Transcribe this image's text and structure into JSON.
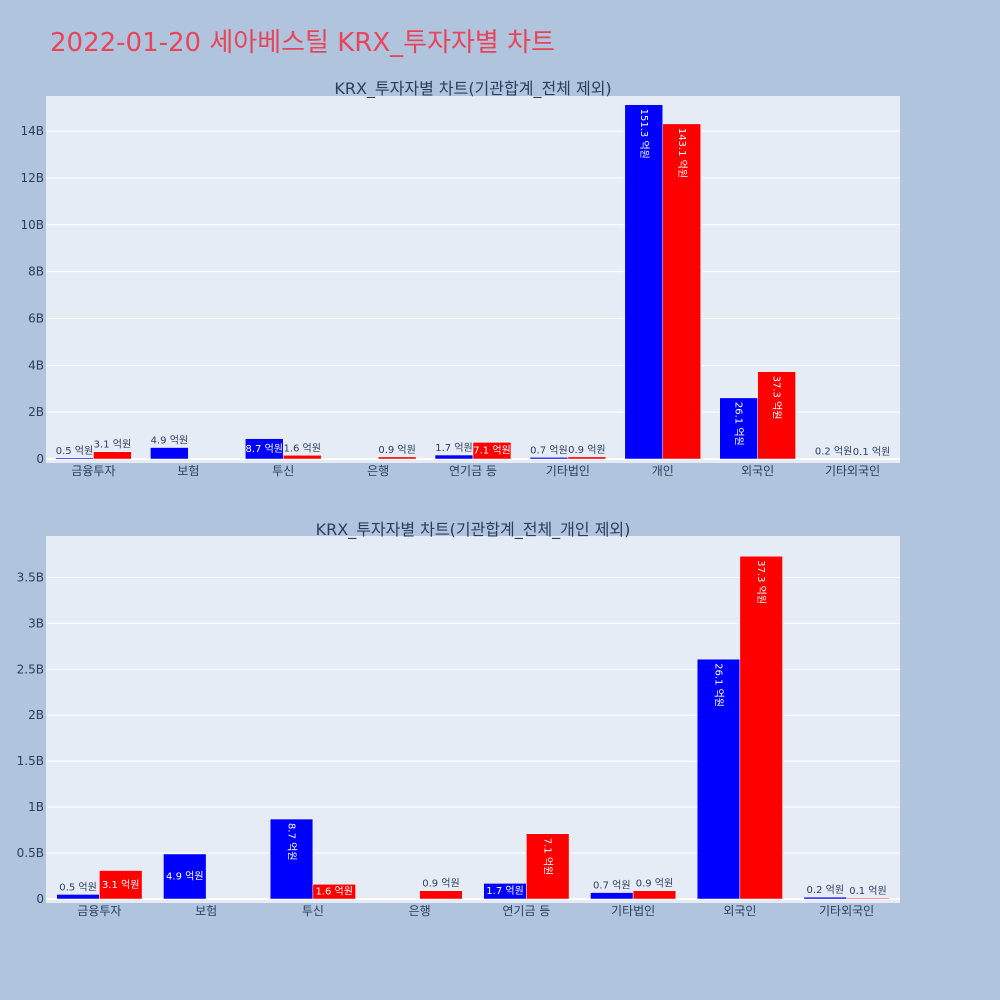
{
  "page": {
    "title": "2022-01-20 세아베스틸 KRX_투자자별 차트"
  },
  "colors": {
    "background": "#b0c4de",
    "plot_bg": "#e5ecf6",
    "title": "#e8455a",
    "text": "#2a3f5f",
    "series_a": "#0000ff",
    "series_b": "#ff0000"
  },
  "chart_data": [
    {
      "type": "bar",
      "title": "KRX_투자자별 차트(기관합계_전체 제외)",
      "categories": [
        "금융투자",
        "보험",
        "투신",
        "은행",
        "연기금 등",
        "기타법인",
        "개인",
        "외국인",
        "기타외국인"
      ],
      "series": [
        {
          "color": "#0000ff",
          "values": [
            0.05,
            0.49,
            0.87,
            0,
            0.17,
            0.07,
            15.13,
            2.61,
            0.02
          ],
          "labels": [
            "0.5 억원",
            "4.9 억원",
            "8.7 억원",
            "",
            "1.7 억원",
            "0.7 억원",
            "151.3 억원",
            "26.1 억원",
            "0.2 억원"
          ]
        },
        {
          "color": "#ff0000",
          "values": [
            0.31,
            0,
            0.16,
            0.09,
            0.71,
            0.09,
            14.31,
            3.73,
            0.01
          ],
          "labels": [
            "3.1 억원",
            "",
            "1.6 억원",
            "0.9 억원",
            "7.1 억원",
            "0.9 억원",
            "143.1 억원",
            "37.3 억원",
            "0.1 억원"
          ]
        }
      ],
      "yunit": "B",
      "ylim": [
        0,
        15.5
      ],
      "yticks": [
        0,
        2,
        4,
        6,
        8,
        10,
        12,
        14
      ],
      "ytick_labels": [
        "0",
        "2B",
        "4B",
        "6B",
        "8B",
        "10B",
        "12B",
        "14B"
      ],
      "grid": true,
      "xlabel": "",
      "ylabel": ""
    },
    {
      "type": "bar",
      "title": "KRX_투자자별 차트(기관합계_전체_개인 제외)",
      "categories": [
        "금융투자",
        "보험",
        "투신",
        "은행",
        "연기금 등",
        "기타법인",
        "외국인",
        "기타외국인"
      ],
      "series": [
        {
          "color": "#0000ff",
          "values": [
            0.05,
            0.49,
            0.87,
            0,
            0.17,
            0.07,
            2.61,
            0.02
          ],
          "labels": [
            "0.5 억원",
            "4.9 억원",
            "8.7 억원",
            "",
            "1.7 억원",
            "0.7 억원",
            "26.1 억원",
            "0.2 억원"
          ]
        },
        {
          "color": "#ff0000",
          "values": [
            0.31,
            0,
            0.16,
            0.09,
            0.71,
            0.09,
            3.73,
            0.01
          ],
          "labels": [
            "3.1 억원",
            "",
            "1.6 억원",
            "0.9 억원",
            "7.1 억원",
            "0.9 억원",
            "37.3 억원",
            "0.1 억원"
          ]
        }
      ],
      "yunit": "B",
      "ylim": [
        0,
        3.95
      ],
      "yticks": [
        0,
        0.5,
        1,
        1.5,
        2,
        2.5,
        3,
        3.5
      ],
      "ytick_labels": [
        "0",
        "0.5B",
        "1B",
        "1.5B",
        "2B",
        "2.5B",
        "3B",
        "3.5B"
      ],
      "grid": true,
      "xlabel": "",
      "ylabel": ""
    }
  ]
}
